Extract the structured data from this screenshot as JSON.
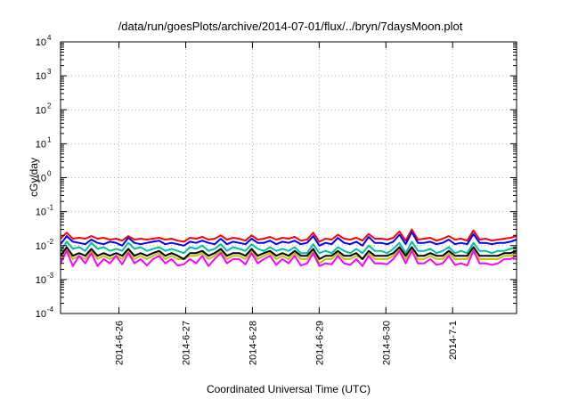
{
  "chart_data": {
    "type": "line",
    "title": "/data/run/goesPlots/archive/2014-07-01/flux/../bryn/7daysMoon.plot",
    "xlabel": "Coordinated Universal Time (UTC)",
    "ylabel": "cGy/day",
    "yscale": "log",
    "ylim": [
      0.0001,
      10000
    ],
    "ytick_exponents": [
      "-4",
      "-3",
      "-2",
      "-1",
      "0",
      "1",
      "2",
      "3",
      "4"
    ],
    "ytick_base": "10",
    "xlim": [
      "2014-06-25T03:00",
      "2014-07-01T23:00"
    ],
    "xticks": [
      {
        "date": "2014-06-26T00:00",
        "label": "2014-6-26"
      },
      {
        "date": "2014-06-27T00:00",
        "label": "2014-6-27"
      },
      {
        "date": "2014-06-28T00:00",
        "label": "2014-6-28"
      },
      {
        "date": "2014-06-29T00:00",
        "label": "2014-6-29"
      },
      {
        "date": "2014-06-30T00:00",
        "label": "2014-6-30"
      },
      {
        "date": "2014-07-01T00:00",
        "label": "2014-7-1"
      }
    ],
    "grid": true,
    "legend": "none",
    "series": [
      {
        "color": "#ff0000",
        "values": [
          0.016,
          0.024,
          0.016,
          0.017,
          0.016,
          0.019,
          0.016,
          0.017,
          0.015,
          0.016,
          0.014,
          0.019,
          0.015,
          0.016,
          0.015,
          0.016,
          0.017,
          0.015,
          0.016,
          0.014,
          0.013,
          0.017,
          0.016,
          0.018,
          0.015,
          0.016,
          0.02,
          0.015,
          0.017,
          0.016,
          0.014,
          0.02,
          0.015,
          0.016,
          0.018,
          0.015,
          0.017,
          0.016,
          0.018,
          0.014,
          0.015,
          0.024,
          0.013,
          0.016,
          0.015,
          0.021,
          0.016,
          0.015,
          0.017,
          0.014,
          0.022,
          0.016,
          0.016,
          0.015,
          0.017,
          0.026,
          0.014,
          0.03,
          0.015,
          0.016,
          0.017,
          0.014,
          0.016,
          0.019,
          0.015,
          0.016,
          0.014,
          0.028,
          0.015,
          0.016,
          0.014,
          0.015,
          0.016,
          0.017,
          0.019
        ]
      },
      {
        "color": "#0000ff",
        "values": [
          0.011,
          0.019,
          0.013,
          0.012,
          0.011,
          0.015,
          0.012,
          0.011,
          0.013,
          0.012,
          0.01,
          0.017,
          0.012,
          0.011,
          0.012,
          0.013,
          0.014,
          0.011,
          0.012,
          0.011,
          0.01,
          0.013,
          0.012,
          0.014,
          0.012,
          0.011,
          0.016,
          0.011,
          0.013,
          0.012,
          0.011,
          0.016,
          0.012,
          0.012,
          0.014,
          0.011,
          0.013,
          0.012,
          0.014,
          0.011,
          0.012,
          0.019,
          0.01,
          0.012,
          0.011,
          0.017,
          0.012,
          0.011,
          0.013,
          0.01,
          0.018,
          0.012,
          0.012,
          0.011,
          0.013,
          0.021,
          0.011,
          0.025,
          0.012,
          0.012,
          0.013,
          0.011,
          0.012,
          0.015,
          0.011,
          0.012,
          0.011,
          0.022,
          0.012,
          0.012,
          0.011,
          0.012,
          0.012,
          0.013,
          0.015
        ]
      },
      {
        "color": "#00c0a0",
        "values": [
          0.007,
          0.013,
          0.008,
          0.009,
          0.007,
          0.012,
          0.008,
          0.009,
          0.007,
          0.008,
          0.007,
          0.012,
          0.008,
          0.009,
          0.007,
          0.008,
          0.009,
          0.007,
          0.008,
          0.007,
          0.006,
          0.009,
          0.008,
          0.01,
          0.007,
          0.008,
          0.011,
          0.007,
          0.009,
          0.008,
          0.007,
          0.011,
          0.008,
          0.007,
          0.009,
          0.007,
          0.008,
          0.007,
          0.009,
          0.006,
          0.006,
          0.011,
          0.006,
          0.007,
          0.006,
          0.009,
          0.007,
          0.006,
          0.008,
          0.006,
          0.01,
          0.007,
          0.007,
          0.006,
          0.008,
          0.012,
          0.006,
          0.013,
          0.007,
          0.007,
          0.008,
          0.006,
          0.007,
          0.009,
          0.006,
          0.007,
          0.006,
          0.012,
          0.007,
          0.007,
          0.006,
          0.007,
          0.007,
          0.008,
          0.009
        ]
      },
      {
        "color": "#c0c000",
        "values": [
          0.004,
          0.008,
          0.004,
          0.005,
          0.004,
          0.007,
          0.004,
          0.005,
          0.004,
          0.005,
          0.004,
          0.007,
          0.004,
          0.005,
          0.004,
          0.005,
          0.006,
          0.004,
          0.005,
          0.004,
          0.004,
          0.005,
          0.005,
          0.006,
          0.004,
          0.005,
          0.007,
          0.004,
          0.005,
          0.005,
          0.004,
          0.007,
          0.004,
          0.005,
          0.006,
          0.004,
          0.005,
          0.004,
          0.006,
          0.004,
          0.004,
          0.007,
          0.003,
          0.004,
          0.004,
          0.006,
          0.004,
          0.004,
          0.005,
          0.004,
          0.006,
          0.004,
          0.004,
          0.004,
          0.005,
          0.008,
          0.004,
          0.008,
          0.004,
          0.004,
          0.005,
          0.004,
          0.004,
          0.006,
          0.004,
          0.004,
          0.004,
          0.008,
          0.004,
          0.004,
          0.004,
          0.004,
          0.005,
          0.005,
          0.006
        ]
      },
      {
        "color": "#000000",
        "values": [
          0.005,
          0.009,
          0.005,
          0.006,
          0.005,
          0.008,
          0.005,
          0.006,
          0.005,
          0.006,
          0.005,
          0.008,
          0.005,
          0.006,
          0.005,
          0.006,
          0.007,
          0.005,
          0.006,
          0.005,
          0.004,
          0.006,
          0.006,
          0.007,
          0.005,
          0.006,
          0.008,
          0.005,
          0.006,
          0.006,
          0.005,
          0.008,
          0.005,
          0.006,
          0.007,
          0.005,
          0.006,
          0.005,
          0.007,
          0.005,
          0.005,
          0.008,
          0.004,
          0.005,
          0.005,
          0.007,
          0.005,
          0.005,
          0.006,
          0.004,
          0.007,
          0.005,
          0.005,
          0.005,
          0.006,
          0.009,
          0.005,
          0.009,
          0.005,
          0.005,
          0.006,
          0.005,
          0.005,
          0.007,
          0.005,
          0.005,
          0.005,
          0.009,
          0.005,
          0.005,
          0.005,
          0.005,
          0.006,
          0.006,
          0.007
        ]
      },
      {
        "color": "#ff00ff",
        "values": [
          0.003,
          0.007,
          0.0025,
          0.005,
          0.003,
          0.006,
          0.0025,
          0.004,
          0.003,
          0.005,
          0.0028,
          0.006,
          0.003,
          0.004,
          0.0026,
          0.004,
          0.005,
          0.003,
          0.004,
          0.0026,
          0.0028,
          0.004,
          0.003,
          0.005,
          0.0025,
          0.004,
          0.006,
          0.003,
          0.004,
          0.004,
          0.0028,
          0.006,
          0.003,
          0.004,
          0.005,
          0.0027,
          0.004,
          0.003,
          0.005,
          0.0026,
          0.003,
          0.006,
          0.0025,
          0.003,
          0.0028,
          0.005,
          0.003,
          0.0027,
          0.004,
          0.0025,
          0.005,
          0.003,
          0.003,
          0.0028,
          0.004,
          0.007,
          0.003,
          0.007,
          0.003,
          0.003,
          0.004,
          0.0027,
          0.003,
          0.005,
          0.0027,
          0.003,
          0.0026,
          0.007,
          0.003,
          0.003,
          0.0027,
          0.003,
          0.004,
          0.004,
          0.005
        ]
      }
    ]
  }
}
